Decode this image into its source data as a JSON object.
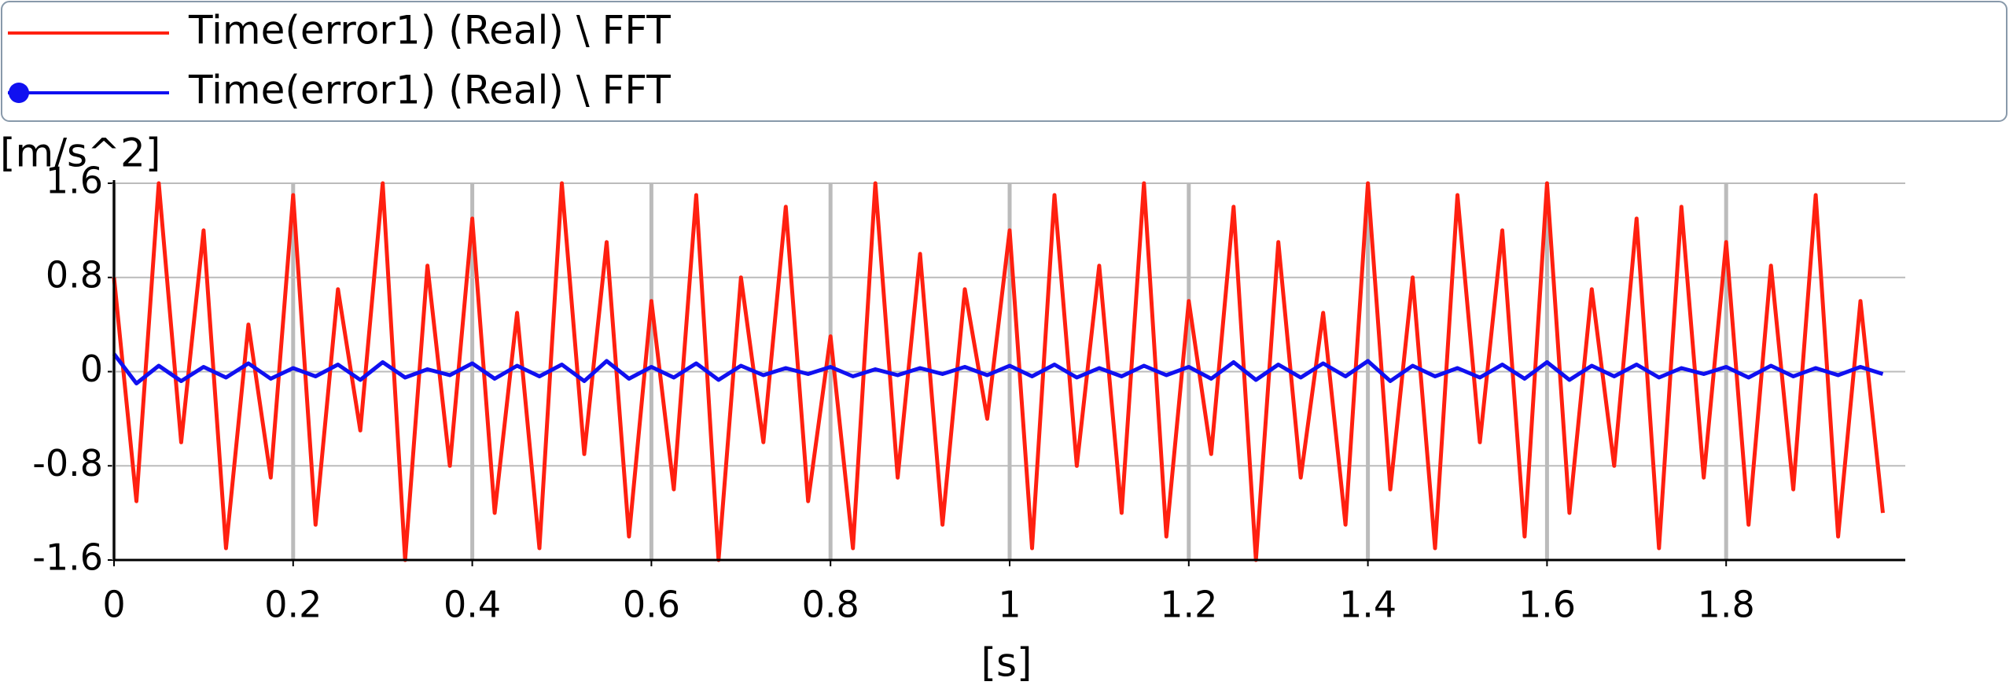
{
  "chart_data": {
    "type": "line",
    "y_label": "[m/s^2]",
    "x_label": "[s]",
    "xlim": [
      0,
      2
    ],
    "ylim": [
      -1.6,
      1.6
    ],
    "xticks": [
      0,
      0.2,
      0.4,
      0.6,
      0.8,
      1,
      1.2,
      1.4,
      1.6,
      1.8
    ],
    "yticks": [
      -1.6,
      -0.8,
      0,
      0.8,
      1.6
    ],
    "grid": true,
    "legend": "top",
    "x": [
      0,
      0.025,
      0.05,
      0.075,
      0.1,
      0.125,
      0.15,
      0.175,
      0.2,
      0.225,
      0.25,
      0.275,
      0.3,
      0.325,
      0.35,
      0.375,
      0.4,
      0.425,
      0.45,
      0.475,
      0.5,
      0.525,
      0.55,
      0.575,
      0.6,
      0.625,
      0.65,
      0.675,
      0.7,
      0.725,
      0.75,
      0.775,
      0.8,
      0.825,
      0.85,
      0.875,
      0.9,
      0.925,
      0.95,
      0.975,
      1,
      1.025,
      1.05,
      1.075,
      1.1,
      1.125,
      1.15,
      1.175,
      1.2,
      1.225,
      1.25,
      1.275,
      1.3,
      1.325,
      1.35,
      1.375,
      1.4,
      1.425,
      1.45,
      1.475,
      1.5,
      1.525,
      1.55,
      1.575,
      1.6,
      1.625,
      1.65,
      1.675,
      1.7,
      1.725,
      1.75,
      1.775,
      1.8,
      1.825,
      1.85,
      1.875,
      1.9,
      1.925,
      1.95,
      1.975
    ],
    "series": [
      {
        "name": "Time(error1) (Real) \\ FFT",
        "color": "#ff2010",
        "marker": false,
        "values": [
          0.8,
          -1.1,
          1.6,
          -0.6,
          1.2,
          -1.5,
          0.4,
          -0.9,
          1.5,
          -1.3,
          0.7,
          -0.5,
          1.6,
          -1.6,
          0.9,
          -0.8,
          1.3,
          -1.2,
          0.5,
          -1.5,
          1.6,
          -0.7,
          1.1,
          -1.4,
          0.6,
          -1.0,
          1.5,
          -1.6,
          0.8,
          -0.6,
          1.4,
          -1.1,
          0.3,
          -1.5,
          1.6,
          -0.9,
          1.0,
          -1.3,
          0.7,
          -0.4,
          1.2,
          -1.5,
          1.5,
          -0.8,
          0.9,
          -1.2,
          1.6,
          -1.4,
          0.6,
          -0.7,
          1.4,
          -1.6,
          1.1,
          -0.9,
          0.5,
          -1.3,
          1.6,
          -1.0,
          0.8,
          -1.5,
          1.5,
          -0.6,
          1.2,
          -1.4,
          1.6,
          -1.2,
          0.7,
          -0.8,
          1.3,
          -1.5,
          1.4,
          -0.9,
          1.1,
          -1.3,
          0.9,
          -1.0,
          1.5,
          -1.4,
          0.6,
          -1.2
        ]
      },
      {
        "name": "Time(error1) (Real) \\ FFT",
        "color": "#1010f0",
        "marker": true,
        "values": [
          0.15,
          -0.1,
          0.05,
          -0.08,
          0.04,
          -0.05,
          0.07,
          -0.06,
          0.03,
          -0.04,
          0.06,
          -0.07,
          0.08,
          -0.05,
          0.02,
          -0.03,
          0.07,
          -0.06,
          0.05,
          -0.04,
          0.06,
          -0.08,
          0.09,
          -0.06,
          0.04,
          -0.05,
          0.07,
          -0.07,
          0.05,
          -0.03,
          0.03,
          -0.02,
          0.04,
          -0.04,
          0.02,
          -0.03,
          0.03,
          -0.02,
          0.04,
          -0.03,
          0.05,
          -0.04,
          0.06,
          -0.05,
          0.03,
          -0.04,
          0.05,
          -0.03,
          0.04,
          -0.06,
          0.08,
          -0.07,
          0.06,
          -0.05,
          0.07,
          -0.04,
          0.09,
          -0.08,
          0.05,
          -0.04,
          0.03,
          -0.05,
          0.06,
          -0.06,
          0.08,
          -0.07,
          0.05,
          -0.04,
          0.06,
          -0.05,
          0.03,
          -0.02,
          0.04,
          -0.05,
          0.05,
          -0.04,
          0.03,
          -0.03,
          0.04,
          -0.02
        ]
      }
    ]
  }
}
